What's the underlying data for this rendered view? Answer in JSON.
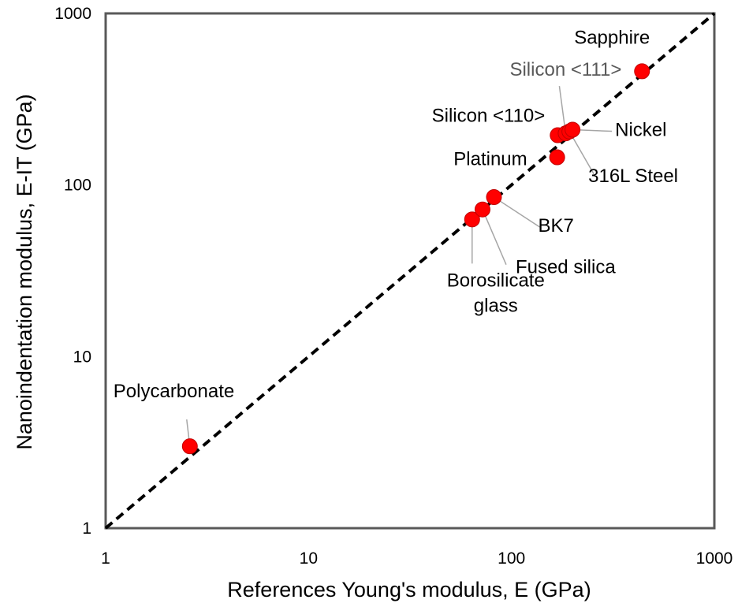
{
  "chart_data": {
    "type": "scatter",
    "title": "",
    "xlabel": "References Young's modulus, E (GPa)",
    "ylabel": "Nanoindentation modulus, E-IT (GPa)",
    "xscale": "log",
    "yscale": "log",
    "xlim": [
      1,
      1000
    ],
    "ylim": [
      1,
      1000
    ],
    "xticks": [
      "1",
      "10",
      "100",
      "1000"
    ],
    "yticks": [
      "1",
      "10",
      "100",
      "1000"
    ],
    "grid": false,
    "legend": "none",
    "reference_line": {
      "style": "dashed",
      "color": "#000000",
      "from": [
        1,
        1
      ],
      "to": [
        1000,
        1000
      ]
    },
    "marker_color": "#ff0000",
    "points": [
      {
        "label": "Polycarbonate",
        "x": 2.6,
        "y": 3.0
      },
      {
        "label": "Borosilicate\nglass",
        "x": 64,
        "y": 63
      },
      {
        "label": "Fused silica",
        "x": 72,
        "y": 72
      },
      {
        "label": "BK7",
        "x": 82,
        "y": 85
      },
      {
        "label": "Platinum",
        "x": 168,
        "y": 145
      },
      {
        "label": "Silicon <110>",
        "x": 169,
        "y": 195
      },
      {
        "label": "Silicon <111>",
        "x": 185,
        "y": 200
      },
      {
        "label": "316L Steel",
        "x": 193,
        "y": 205
      },
      {
        "label": "Nickel",
        "x": 200,
        "y": 210
      },
      {
        "label": "Sapphire",
        "x": 440,
        "y": 460
      }
    ]
  }
}
